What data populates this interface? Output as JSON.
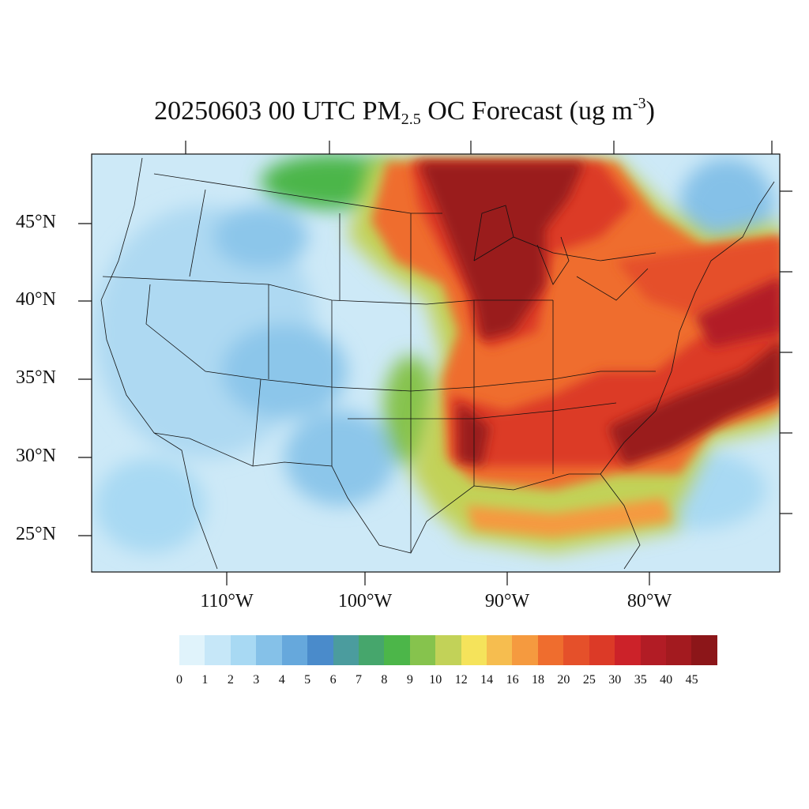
{
  "title": {
    "prefix": "20250603 00 UTC PM",
    "subscript": "2.5",
    "middle": " OC Forecast (ug m",
    "superscript": "-3",
    "suffix": ")"
  },
  "map": {
    "type": "filled contour map",
    "region": "Contiguous United States",
    "lat_labels": [
      "45°N",
      "40°N",
      "35°N",
      "30°N",
      "25°N"
    ],
    "lon_labels": [
      "110°W",
      "100°W",
      "90°W",
      "80°W"
    ],
    "hotspots": [
      {
        "area": "Great Lakes / Upper Midwest",
        "level": "45+"
      },
      {
        "area": "Southeast US / Gulf Coast",
        "level": "45+"
      },
      {
        "area": "Western Atlantic off Carolinas",
        "level": "45+"
      },
      {
        "area": "Intermountain West",
        "level": "1-4"
      }
    ]
  },
  "colorbar": {
    "colors": [
      "#e0f3fb",
      "#c6e7f8",
      "#a8d9f3",
      "#85c1e8",
      "#66a8dc",
      "#4a8bcb",
      "#4b9c9e",
      "#46a66c",
      "#4cb649",
      "#86c34d",
      "#c2d258",
      "#f5e35b",
      "#f6bd4f",
      "#f59a3f",
      "#ef6d2e",
      "#e5502a",
      "#dc3a27",
      "#cc2229",
      "#b21c25",
      "#a31a1f",
      "#8c1619"
    ],
    "labels": [
      "0",
      "1",
      "2",
      "3",
      "4",
      "5",
      "6",
      "7",
      "8",
      "9",
      "10",
      "12",
      "14",
      "16",
      "18",
      "20",
      "25",
      "30",
      "35",
      "40",
      "45"
    ]
  }
}
